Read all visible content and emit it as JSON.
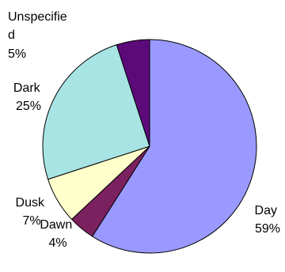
{
  "chart_data": {
    "type": "pie",
    "categories": [
      "Day",
      "Dawn",
      "Dusk",
      "Dark",
      "Unspecified"
    ],
    "values": [
      59,
      4,
      7,
      25,
      5
    ],
    "label_lines": [
      [
        "Day",
        "59%"
      ],
      [
        "Dawn",
        "4%"
      ],
      [
        "Dusk",
        "7%"
      ],
      [
        "Dark",
        "25%"
      ],
      [
        "Unspecifie",
        "d",
        "5%"
      ]
    ],
    "colors": [
      "#9999ff",
      "#7b2160",
      "#ffffcc",
      "#a8e4e4",
      "#5c0a7a"
    ],
    "edge_color": "#000000",
    "start_angle_deg": 0,
    "direction": "clockwise",
    "legend": "none",
    "title": ""
  }
}
